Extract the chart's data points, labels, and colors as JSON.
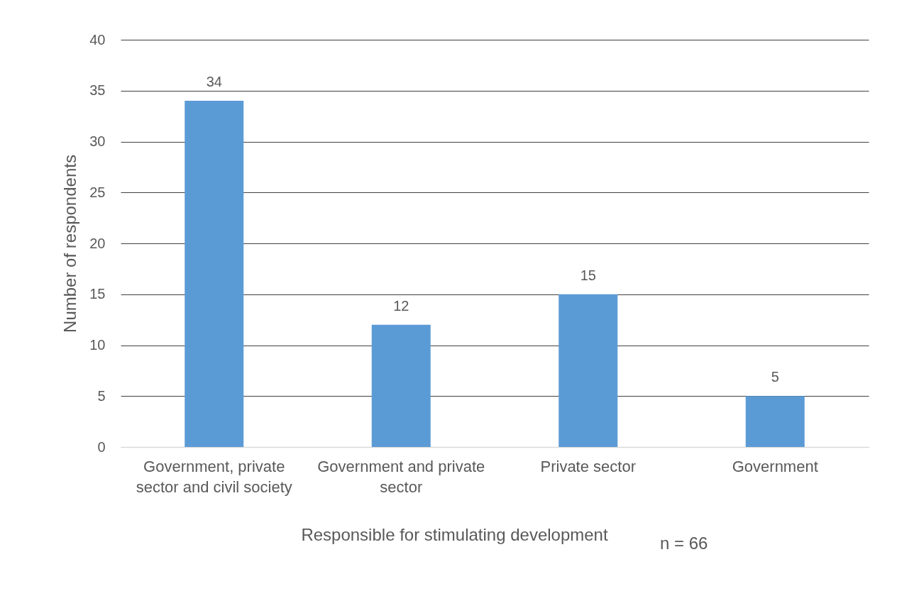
{
  "chart_data": {
    "type": "bar",
    "categories": [
      "Government, private sector and civil society",
      "Government and private sector",
      "Private sector",
      "Government"
    ],
    "values": [
      34,
      12,
      15,
      5
    ],
    "color": "#5b9bd5",
    "xlabel": "Responsible for stimulating development",
    "ylabel": "Number of respondents",
    "annotations": [
      "n = 66"
    ],
    "ylim": [
      0,
      40
    ],
    "yticks": [
      0,
      5,
      10,
      15,
      20,
      25,
      30,
      35,
      40
    ],
    "grid": "y",
    "data_labels": true
  }
}
